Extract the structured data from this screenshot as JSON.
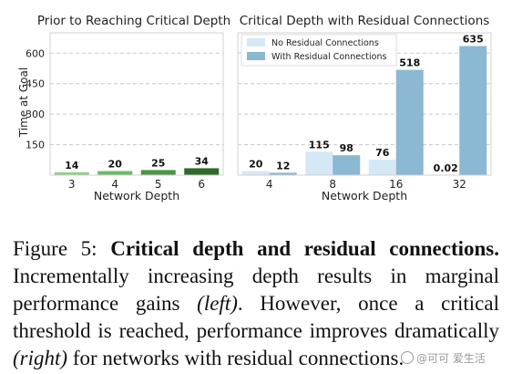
{
  "chart_data": [
    {
      "type": "bar",
      "title": "Prior to Reaching Critical Depth",
      "xlabel": "Network Depth",
      "ylabel": "Time at Goal",
      "categories": [
        "3",
        "4",
        "5",
        "6"
      ],
      "values": [
        14,
        20,
        25,
        34
      ],
      "bar_colors": [
        "#8fcf85",
        "#6cb965",
        "#4a9448",
        "#2f6b2d"
      ],
      "ylim": [
        0,
        700
      ],
      "yticks": [
        150,
        300,
        450,
        600
      ],
      "grid": true
    },
    {
      "type": "bar",
      "title": "Critical Depth with Residual Connections",
      "xlabel": "Network Depth",
      "categories": [
        "4",
        "8",
        "16",
        "32"
      ],
      "series": [
        {
          "name": "No Residual Connections",
          "values": [
            20,
            115,
            76,
            0.02
          ],
          "color": "#d4e8f5"
        },
        {
          "name": "With Residual Connections",
          "values": [
            12,
            98,
            518,
            635
          ],
          "color": "#8bb8d2"
        }
      ],
      "ylim": [
        0,
        700
      ],
      "yticks": [
        150,
        300,
        450,
        600
      ],
      "legend": "top-left",
      "grid": true
    }
  ],
  "caption": {
    "label": "Figure 5:",
    "bold": "Critical depth and residual connections.",
    "text1": "Incrementally increasing depth results in marginal performance gains",
    "italic1": "(left)",
    "text2": ". However, once a critical threshold is reached, performance improves dramatically",
    "italic2": "(right)",
    "text3": " for networks with residual connections."
  },
  "watermark": "@可可 爱生活"
}
